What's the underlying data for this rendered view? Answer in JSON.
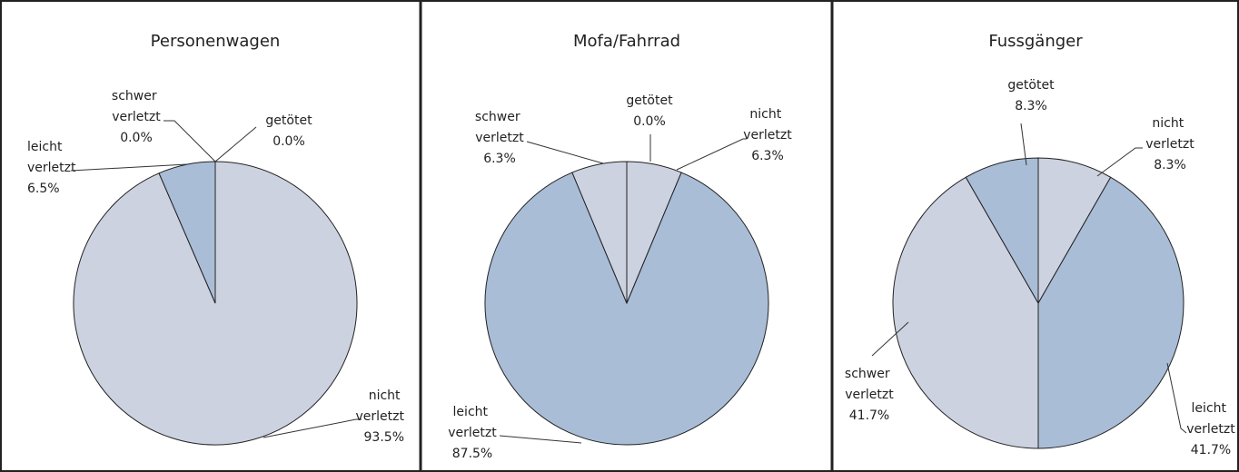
{
  "chart_data": [
    {
      "type": "pie",
      "title": "Personenwagen",
      "categories": [
        "nicht verletzt",
        "leicht verletzt",
        "schwer verletzt",
        "getötet"
      ],
      "values": [
        93.5,
        6.5,
        0,
        0
      ],
      "value_labels": [
        "93.5%",
        "6.5%",
        "0.0%",
        "0.0%"
      ],
      "colors": [
        "#cdd2e0",
        "#a9bdd7",
        "#cdd2e0",
        "#a9bdd7"
      ]
    },
    {
      "type": "pie",
      "title": "Mofa/Fahrrad",
      "categories": [
        "nicht verletzt",
        "leicht verletzt",
        "schwer verletzt",
        "getötet"
      ],
      "values": [
        6.3,
        87.5,
        6.3,
        0
      ],
      "value_labels": [
        "6.3%",
        "87.5%",
        "6.3%",
        "0.0%"
      ],
      "colors": [
        "#cdd2e0",
        "#a9bdd7",
        "#cdd2e0",
        "#a9bdd7"
      ]
    },
    {
      "type": "pie",
      "title": "Fussgänger",
      "categories": [
        "nicht verletzt",
        "leicht verletzt",
        "schwer verletzt",
        "getötet"
      ],
      "values": [
        8.3,
        41.7,
        41.7,
        8.3
      ],
      "value_labels": [
        "8.3%",
        "41.7%",
        "41.7%",
        "8.3%"
      ],
      "colors": [
        "#cdd2e0",
        "#a9bdd7",
        "#cdd2e0",
        "#a9bdd7"
      ]
    }
  ]
}
